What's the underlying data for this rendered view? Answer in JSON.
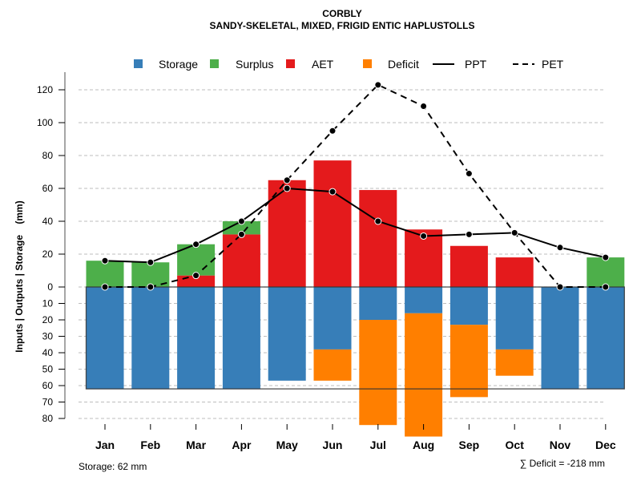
{
  "chart_data": {
    "type": "bar",
    "title": "CORBLY",
    "subtitle": "SANDY-SKELETAL, MIXED, FRIGID ENTIC HAPLUSTOLLS",
    "xlabel": "",
    "ylabel": "Inputs | Outputs | Storage    (mm)",
    "categories": [
      "Jan",
      "Feb",
      "Mar",
      "Apr",
      "May",
      "Jun",
      "Jul",
      "Aug",
      "Sep",
      "Oct",
      "Nov",
      "Dec"
    ],
    "yticks_positive": [
      0,
      20,
      40,
      60,
      80,
      100,
      120
    ],
    "yticks_negative": [
      10,
      20,
      30,
      40,
      50,
      60,
      70,
      80
    ],
    "ylim": [
      -80,
      120
    ],
    "grid": true,
    "legend_placement": "top",
    "legend": [
      {
        "label": "Storage",
        "kind": "box",
        "color": "#377EB8"
      },
      {
        "label": "Surplus",
        "kind": "box",
        "color": "#4DAF4A"
      },
      {
        "label": "AET",
        "kind": "box",
        "color": "#E41A1C"
      },
      {
        "label": "Deficit",
        "kind": "box",
        "color": "#FF7F00"
      },
      {
        "label": "PPT",
        "kind": "solid-line",
        "color": "#000000"
      },
      {
        "label": "PET",
        "kind": "dashed-line",
        "color": "#000000"
      }
    ],
    "series": [
      {
        "name": "Surplus",
        "color": "#4DAF4A",
        "values": [
          16,
          15,
          19,
          8,
          0,
          0,
          0,
          0,
          0,
          0,
          0,
          18
        ]
      },
      {
        "name": "AET",
        "color": "#E41A1C",
        "values": [
          0,
          0,
          7,
          32,
          65,
          77,
          59,
          35,
          25,
          18,
          0,
          0
        ]
      },
      {
        "name": "Storage",
        "color": "#377EB8",
        "values": [
          62,
          62,
          62,
          62,
          57,
          38,
          20,
          16,
          23,
          38,
          62,
          62
        ]
      },
      {
        "name": "Deficit",
        "color": "#FF7F00",
        "values": [
          0,
          0,
          0,
          0,
          0,
          19,
          64,
          75,
          44,
          16,
          0,
          0
        ]
      },
      {
        "name": "PPT",
        "color": "#000000",
        "values": [
          16,
          15,
          26,
          40,
          60,
          58,
          40,
          31,
          32,
          33,
          24,
          18
        ]
      },
      {
        "name": "PET",
        "color": "#000000",
        "values": [
          0,
          0,
          7,
          32,
          65,
          95,
          123,
          110,
          69,
          33,
          0,
          0
        ]
      }
    ],
    "storage_capacity": 62,
    "annotations": {
      "storage": "Storage: 62 mm",
      "deficit_sum": "∑ Deficit = -218 mm"
    }
  }
}
